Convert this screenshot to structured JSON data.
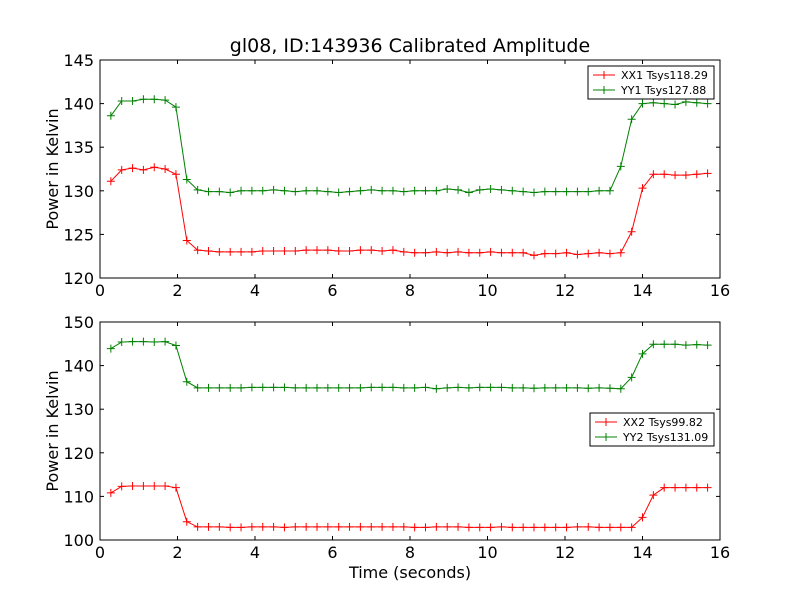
{
  "chart_data": [
    {
      "type": "line",
      "title": "gl08, ID:143936 Calibrated Amplitude",
      "xlabel": "",
      "ylabel": "Power in Kelvin",
      "xlim": [
        0,
        16
      ],
      "ylim": [
        120,
        145
      ],
      "xticks": [
        0,
        2,
        4,
        6,
        8,
        10,
        12,
        14,
        16
      ],
      "yticks": [
        120,
        125,
        130,
        135,
        140,
        145
      ],
      "legend_position": "top-right",
      "x": [
        0.28,
        0.56,
        0.84,
        1.12,
        1.4,
        1.68,
        1.96,
        2.24,
        2.52,
        2.8,
        3.08,
        3.36,
        3.64,
        3.92,
        4.2,
        4.48,
        4.76,
        5.04,
        5.32,
        5.6,
        5.88,
        6.16,
        6.44,
        6.72,
        7.0,
        7.28,
        7.56,
        7.84,
        8.12,
        8.4,
        8.68,
        8.96,
        9.24,
        9.52,
        9.8,
        10.08,
        10.36,
        10.64,
        10.92,
        11.2,
        11.48,
        11.76,
        12.04,
        12.32,
        12.6,
        12.88,
        13.16,
        13.44,
        13.72,
        14.0,
        14.28,
        14.56,
        14.84,
        15.12,
        15.4,
        15.68
      ],
      "series": [
        {
          "name": "XX1 Tsys118.29",
          "color": "#ff0000",
          "values": [
            131.1,
            132.4,
            132.6,
            132.4,
            132.7,
            132.5,
            131.9,
            124.3,
            123.2,
            123.1,
            123.0,
            123.0,
            123.0,
            123.0,
            123.1,
            123.1,
            123.1,
            123.1,
            123.2,
            123.2,
            123.2,
            123.1,
            123.1,
            123.2,
            123.2,
            123.1,
            123.2,
            123.0,
            122.9,
            122.9,
            123.0,
            122.9,
            123.0,
            122.9,
            122.9,
            123.0,
            122.9,
            122.9,
            122.9,
            122.6,
            122.8,
            122.8,
            122.9,
            122.7,
            122.8,
            122.9,
            122.8,
            122.9,
            125.3,
            130.3,
            131.9,
            131.9,
            131.8,
            131.8,
            131.9,
            132.0
          ]
        },
        {
          "name": "YY1 Tsys127.88",
          "color": "#008000",
          "values": [
            138.6,
            140.3,
            140.3,
            140.5,
            140.5,
            140.4,
            139.6,
            131.3,
            130.1,
            129.9,
            129.9,
            129.8,
            130.0,
            130.0,
            130.0,
            130.1,
            130.0,
            129.9,
            130.0,
            130.0,
            129.9,
            129.8,
            129.9,
            130.0,
            130.1,
            130.0,
            130.0,
            129.9,
            130.0,
            130.0,
            130.0,
            130.2,
            130.1,
            129.8,
            130.1,
            130.2,
            130.1,
            130.0,
            129.9,
            129.8,
            129.9,
            129.9,
            129.9,
            129.9,
            129.9,
            130.0,
            130.0,
            132.8,
            138.2,
            140.0,
            140.1,
            140.0,
            139.9,
            140.2,
            140.1,
            140.0
          ]
        }
      ]
    },
    {
      "type": "line",
      "title": "",
      "xlabel": "Time (seconds)",
      "ylabel": "Power in Kelvin",
      "xlim": [
        0,
        16
      ],
      "ylim": [
        100,
        150
      ],
      "xticks": [
        0,
        2,
        4,
        6,
        8,
        10,
        12,
        14,
        16
      ],
      "yticks": [
        100,
        110,
        120,
        130,
        140,
        150
      ],
      "legend_position": "center-right",
      "x": [
        0.28,
        0.56,
        0.84,
        1.12,
        1.4,
        1.68,
        1.96,
        2.24,
        2.52,
        2.8,
        3.08,
        3.36,
        3.64,
        3.92,
        4.2,
        4.48,
        4.76,
        5.04,
        5.32,
        5.6,
        5.88,
        6.16,
        6.44,
        6.72,
        7.0,
        7.28,
        7.56,
        7.84,
        8.12,
        8.4,
        8.68,
        8.96,
        9.24,
        9.52,
        9.8,
        10.08,
        10.36,
        10.64,
        10.92,
        11.2,
        11.48,
        11.76,
        12.04,
        12.32,
        12.6,
        12.88,
        13.16,
        13.44,
        13.72,
        14.0,
        14.28,
        14.56,
        14.84,
        15.12,
        15.4,
        15.68
      ],
      "series": [
        {
          "name": "XX2 Tsys99.82",
          "color": "#ff0000",
          "values": [
            110.8,
            112.3,
            112.4,
            112.4,
            112.4,
            112.4,
            112.0,
            104.2,
            103.0,
            103.0,
            103.0,
            102.9,
            102.9,
            103.0,
            103.0,
            103.0,
            102.9,
            103.0,
            103.0,
            103.0,
            103.0,
            103.0,
            103.0,
            103.0,
            103.0,
            103.0,
            103.0,
            103.0,
            102.9,
            102.9,
            103.0,
            103.0,
            103.0,
            102.9,
            102.9,
            102.9,
            103.0,
            102.9,
            102.9,
            102.9,
            102.9,
            102.9,
            102.9,
            103.0,
            103.0,
            102.9,
            102.9,
            102.9,
            102.9,
            105.2,
            110.3,
            112.0,
            112.0,
            112.0,
            112.0,
            112.0
          ]
        },
        {
          "name": "YY2 Tsys131.09",
          "color": "#008000",
          "values": [
            143.9,
            145.4,
            145.5,
            145.5,
            145.4,
            145.5,
            144.6,
            136.3,
            134.9,
            134.9,
            134.9,
            134.9,
            134.9,
            135.0,
            135.0,
            135.0,
            135.0,
            134.9,
            134.9,
            134.9,
            134.9,
            134.9,
            134.9,
            134.9,
            135.0,
            135.0,
            135.0,
            134.9,
            134.9,
            135.0,
            134.7,
            134.9,
            135.0,
            134.9,
            135.0,
            135.0,
            135.0,
            134.9,
            134.9,
            134.8,
            134.9,
            134.9,
            134.9,
            134.9,
            134.8,
            134.9,
            134.8,
            134.7,
            137.3,
            142.7,
            144.9,
            144.9,
            144.9,
            144.7,
            144.8,
            144.7
          ]
        }
      ]
    }
  ]
}
